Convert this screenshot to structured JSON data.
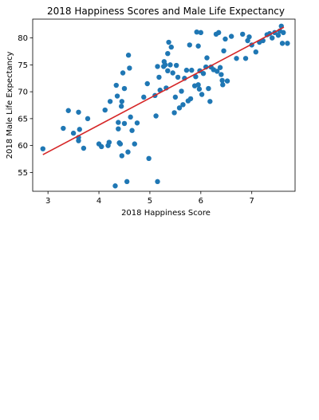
{
  "chart_data": {
    "type": "scatter",
    "title": "2018 Happiness Scores and Male Life Expectancy",
    "xlabel": "2018 Happiness Score",
    "ylabel": "2018 Male Life Expectancy",
    "xlim": [
      2.7,
      7.85
    ],
    "ylim": [
      51.5,
      83.5
    ],
    "xticks": [
      3,
      4,
      5,
      6,
      7
    ],
    "yticks": [
      55,
      60,
      65,
      70,
      75,
      80
    ],
    "grid": false,
    "point_color": "#1f77b4",
    "line_color": "#d62728",
    "trend_line": {
      "x": [
        2.9,
        7.63
      ],
      "y": [
        58.3,
        82.0
      ]
    },
    "points": [
      [
        2.9,
        59.4
      ],
      [
        3.3,
        63.2
      ],
      [
        3.4,
        66.5
      ],
      [
        3.5,
        62.3
      ],
      [
        3.6,
        60.9
      ],
      [
        3.6,
        61.5
      ],
      [
        3.6,
        66.2
      ],
      [
        3.62,
        63.0
      ],
      [
        3.7,
        59.5
      ],
      [
        3.78,
        65.0
      ],
      [
        4.0,
        60.3
      ],
      [
        4.05,
        59.8
      ],
      [
        4.12,
        66.6
      ],
      [
        4.18,
        60.0
      ],
      [
        4.2,
        60.6
      ],
      [
        4.22,
        68.2
      ],
      [
        4.32,
        52.5
      ],
      [
        4.34,
        71.2
      ],
      [
        4.36,
        69.2
      ],
      [
        4.38,
        63.1
      ],
      [
        4.38,
        64.3
      ],
      [
        4.4,
        60.5
      ],
      [
        4.42,
        60.3
      ],
      [
        4.44,
        67.3
      ],
      [
        4.45,
        68.2
      ],
      [
        4.45,
        58.1
      ],
      [
        4.47,
        73.5
      ],
      [
        4.5,
        64.1
      ],
      [
        4.5,
        70.6
      ],
      [
        4.55,
        53.3
      ],
      [
        4.57,
        58.8
      ],
      [
        4.58,
        76.8
      ],
      [
        4.6,
        74.4
      ],
      [
        4.62,
        65.3
      ],
      [
        4.65,
        62.8
      ],
      [
        4.7,
        60.3
      ],
      [
        4.75,
        64.2
      ],
      [
        4.88,
        69.0
      ],
      [
        4.95,
        71.5
      ],
      [
        4.98,
        57.6
      ],
      [
        5.1,
        69.3
      ],
      [
        5.12,
        65.5
      ],
      [
        5.15,
        74.7
      ],
      [
        5.15,
        53.3
      ],
      [
        5.18,
        72.7
      ],
      [
        5.2,
        70.3
      ],
      [
        5.27,
        74.7
      ],
      [
        5.28,
        75.6
      ],
      [
        5.3,
        75.0
      ],
      [
        5.32,
        70.7
      ],
      [
        5.35,
        73.9
      ],
      [
        5.35,
        77.1
      ],
      [
        5.37,
        79.2
      ],
      [
        5.4,
        75.0
      ],
      [
        5.42,
        78.3
      ],
      [
        5.45,
        73.5
      ],
      [
        5.48,
        66.1
      ],
      [
        5.5,
        69.0
      ],
      [
        5.52,
        74.9
      ],
      [
        5.55,
        72.7
      ],
      [
        5.58,
        67.0
      ],
      [
        5.62,
        70.1
      ],
      [
        5.65,
        67.6
      ],
      [
        5.68,
        72.5
      ],
      [
        5.72,
        74.0
      ],
      [
        5.75,
        68.3
      ],
      [
        5.78,
        78.7
      ],
      [
        5.8,
        68.7
      ],
      [
        5.82,
        74.0
      ],
      [
        5.88,
        71.1
      ],
      [
        5.9,
        72.8
      ],
      [
        5.92,
        81.1
      ],
      [
        5.95,
        78.5
      ],
      [
        5.95,
        71.3
      ],
      [
        5.97,
        70.5
      ],
      [
        5.98,
        73.9
      ],
      [
        6.0,
        81.0
      ],
      [
        6.02,
        69.5
      ],
      [
        6.05,
        73.4
      ],
      [
        6.1,
        74.6
      ],
      [
        6.12,
        76.3
      ],
      [
        6.15,
        70.6
      ],
      [
        6.18,
        68.2
      ],
      [
        6.2,
        74.6
      ],
      [
        6.25,
        74.1
      ],
      [
        6.3,
        80.7
      ],
      [
        6.32,
        73.8
      ],
      [
        6.35,
        81.0
      ],
      [
        6.38,
        74.5
      ],
      [
        6.4,
        73.2
      ],
      [
        6.42,
        72.1
      ],
      [
        6.43,
        71.3
      ],
      [
        6.45,
        77.6
      ],
      [
        6.48,
        79.8
      ],
      [
        6.52,
        72.0
      ],
      [
        6.6,
        80.3
      ],
      [
        6.7,
        76.2
      ],
      [
        6.82,
        80.7
      ],
      [
        6.88,
        76.2
      ],
      [
        6.92,
        79.5
      ],
      [
        6.95,
        80.2
      ],
      [
        7.0,
        78.7
      ],
      [
        7.08,
        77.4
      ],
      [
        7.15,
        79.2
      ],
      [
        7.22,
        79.5
      ],
      [
        7.3,
        80.6
      ],
      [
        7.35,
        80.8
      ],
      [
        7.4,
        80.0
      ],
      [
        7.45,
        81.0
      ],
      [
        7.52,
        80.5
      ],
      [
        7.55,
        81.3
      ],
      [
        7.58,
        82.2
      ],
      [
        7.6,
        79.0
      ],
      [
        7.62,
        81.0
      ],
      [
        7.7,
        79.0
      ]
    ]
  }
}
